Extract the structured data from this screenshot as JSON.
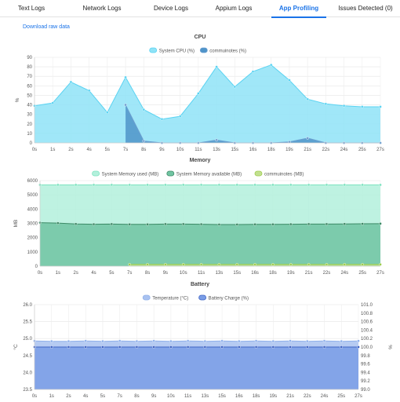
{
  "tabs": [
    {
      "label": "Text Logs",
      "active": false
    },
    {
      "label": "Network Logs",
      "active": false
    },
    {
      "label": "Device Logs",
      "active": false
    },
    {
      "label": "Appium Logs",
      "active": false
    },
    {
      "label": "App Profiling",
      "active": true
    },
    {
      "label": "Issues Detected (0)",
      "active": false
    }
  ],
  "download_label": "Download raw data",
  "accent_color": "#1a73e8",
  "chart_data": [
    {
      "type": "area",
      "title": "CPU",
      "ylabel": "%",
      "ylim": [
        0,
        90
      ],
      "yticks": [
        0,
        10,
        20,
        30,
        40,
        50,
        60,
        70,
        80,
        90
      ],
      "x": [
        "0s",
        "1s",
        "2s",
        "4s",
        "5s",
        "7s",
        "8s",
        "9s",
        "10s",
        "11s",
        "13s",
        "15s",
        "16s",
        "18s",
        "19s",
        "21s",
        "22s",
        "24s",
        "25s",
        "27s"
      ],
      "legend_position": "top",
      "series": [
        {
          "name": "System CPU (%)",
          "color": "#5ad3f2",
          "fill": "#8fe3f7",
          "values": [
            39,
            42,
            64,
            55,
            32,
            69,
            35,
            25,
            28,
            52,
            80,
            59,
            75,
            82,
            66,
            46,
            41,
            39,
            38,
            38
          ]
        },
        {
          "name": "commuinotes (%)",
          "color": "#6b9ed0",
          "fill": "#4f94c9",
          "values": [
            null,
            null,
            null,
            null,
            null,
            40,
            2,
            0,
            0,
            0,
            3,
            0,
            0,
            0,
            1,
            5,
            0,
            0,
            0,
            0
          ]
        }
      ]
    },
    {
      "type": "area",
      "title": "Memory",
      "ylabel": "MB",
      "ylim": [
        0,
        6000
      ],
      "yticks": [
        0,
        1000,
        2000,
        3000,
        4000,
        5000,
        6000
      ],
      "x": [
        "0s",
        "1s",
        "2s",
        "4s",
        "5s",
        "7s",
        "8s",
        "9s",
        "10s",
        "11s",
        "13s",
        "15s",
        "16s",
        "18s",
        "19s",
        "21s",
        "22s",
        "24s",
        "25s",
        "27s"
      ],
      "legend_position": "top",
      "series": [
        {
          "name": "System Memory used (MB)",
          "color": "#7ce3bf",
          "fill": "#b3f0dc",
          "values": [
            5700,
            5700,
            5700,
            5700,
            5700,
            5700,
            5700,
            5700,
            5700,
            5700,
            5700,
            5700,
            5700,
            5700,
            5700,
            5700,
            5700,
            5700,
            5700,
            5700
          ]
        },
        {
          "name": "System Memory available (MB)",
          "color": "#3c8a66",
          "fill": "#71c4a2",
          "values": [
            3050,
            3020,
            2960,
            2940,
            2950,
            2930,
            2930,
            2950,
            2950,
            2940,
            2920,
            2920,
            2930,
            2930,
            2940,
            2950,
            2950,
            2960,
            2970,
            2980
          ]
        },
        {
          "name": "commuinotes (MB)",
          "color": "#9ccc4c",
          "fill": "#c2e08f",
          "values": [
            null,
            null,
            null,
            null,
            null,
            120,
            120,
            120,
            120,
            120,
            120,
            120,
            120,
            120,
            120,
            120,
            120,
            120,
            120,
            120
          ]
        }
      ]
    },
    {
      "type": "area",
      "title": "Battery",
      "ylabel": "°C",
      "ylabel_right": "%",
      "ylim": [
        23.5,
        26
      ],
      "ylim_right": [
        99,
        101
      ],
      "yticks": [
        "23.5",
        "24.0",
        "24.5",
        "25.0",
        "25.5",
        "26.0"
      ],
      "yticks_right": [
        "99.0",
        "99.2",
        "99.4",
        "99.6",
        "99.8",
        "100.0",
        "100.2",
        "100.4",
        "100.6",
        "100.8",
        "101.0"
      ],
      "x": [
        "0s",
        "1s",
        "2s",
        "4s",
        "5s",
        "7s",
        "8s",
        "9s",
        "10s",
        "11s",
        "13s",
        "15s",
        "16s",
        "18s",
        "19s",
        "21s",
        "22s",
        "24s",
        "25s",
        "27s"
      ],
      "legend_position": "top",
      "series": [
        {
          "name": "Temperature (°C)",
          "color": "#8fb0ea",
          "fill": "#a9c2f0",
          "axis": "left",
          "values": [
            24.93,
            24.92,
            24.92,
            24.93,
            24.92,
            24.93,
            24.92,
            24.93,
            24.92,
            24.93,
            24.92,
            24.93,
            24.92,
            24.93,
            24.92,
            24.93,
            24.92,
            24.93,
            24.92,
            24.93
          ]
        },
        {
          "name": "Battery Charge (%)",
          "color": "#3f63c4",
          "fill": "#7a9de6",
          "axis": "right",
          "values": [
            100,
            100,
            100,
            100,
            100,
            100,
            100,
            100,
            100,
            100,
            100,
            100,
            100,
            100,
            100,
            100,
            100,
            100,
            100,
            100
          ]
        }
      ]
    }
  ]
}
